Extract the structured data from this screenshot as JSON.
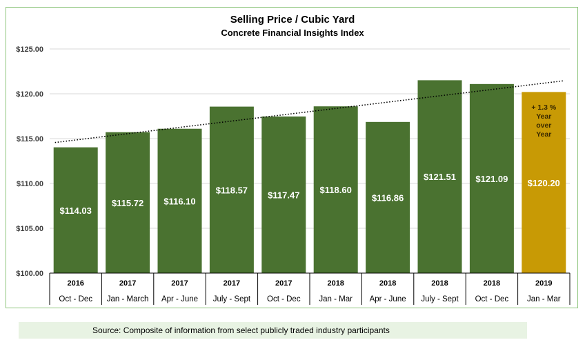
{
  "chart_data": {
    "type": "bar",
    "title": "Selling Price / Cubic Yard",
    "subtitle": "Concrete Financial Insights Index",
    "categories": [
      {
        "year": "2016",
        "period": "Oct - Dec"
      },
      {
        "year": "2017",
        "period": "Jan - March"
      },
      {
        "year": "2017",
        "period": "Apr - June"
      },
      {
        "year": "2017",
        "period": "July - Sept"
      },
      {
        "year": "2017",
        "period": "Oct - Dec"
      },
      {
        "year": "2018",
        "period": "Jan - Mar"
      },
      {
        "year": "2018",
        "period": "Apr - June"
      },
      {
        "year": "2018",
        "period": "July - Sept"
      },
      {
        "year": "2018",
        "period": "Oct - Dec"
      },
      {
        "year": "2019",
        "period": "Jan - Mar"
      }
    ],
    "values": [
      114.03,
      115.72,
      116.1,
      118.57,
      117.47,
      118.6,
      116.86,
      121.51,
      121.09,
      120.2
    ],
    "data_labels": [
      "$114.03",
      "$115.72",
      "$116.10",
      "$118.57",
      "$117.47",
      "$118.60",
      "$116.86",
      "$121.51",
      "$121.09",
      "$120.20"
    ],
    "ylim": [
      100,
      125
    ],
    "yticks": [
      "$100.00",
      "$105.00",
      "$110.00",
      "$115.00",
      "$120.00",
      "$125.00"
    ],
    "ytick_values": [
      100,
      105,
      110,
      115,
      120,
      125
    ],
    "grid": true,
    "trendline": {
      "type": "linear",
      "style": "dotted",
      "color": "#000000"
    },
    "colors": {
      "bar": "#4a7230",
      "highlight": "#c89a05",
      "highlight_text": "#3a2a00"
    },
    "highlight_index": 9,
    "annotation": [
      "+ 1.3 %",
      "Year",
      "over",
      "Year"
    ],
    "xlabel": "",
    "ylabel": ""
  },
  "source": "Source: Composite of information from select publicly traded industry participants"
}
